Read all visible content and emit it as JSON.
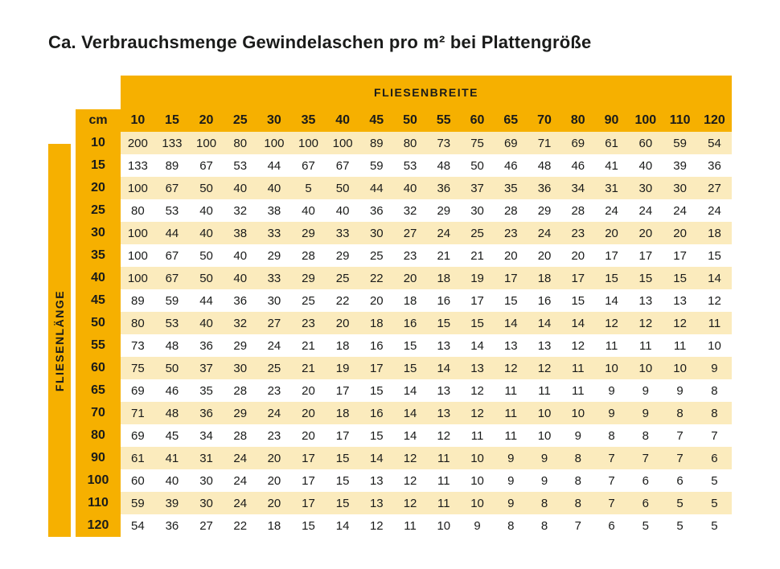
{
  "title": "Ca. Verbrauchsmenge Gewindelaschen pro m² bei Plattengröße",
  "xAxisLabel": "FLIESENBREITE",
  "yAxisLabel": "FLIESENLÄNGE",
  "unitLabel": "cm",
  "columns": [
    "10",
    "15",
    "20",
    "25",
    "30",
    "35",
    "40",
    "45",
    "50",
    "55",
    "60",
    "65",
    "70",
    "80",
    "90",
    "100",
    "110",
    "120"
  ],
  "rows": [
    {
      "h": "10",
      "v": [
        "200",
        "133",
        "100",
        "80",
        "100",
        "100",
        "100",
        "89",
        "80",
        "73",
        "75",
        "69",
        "71",
        "69",
        "61",
        "60",
        "59",
        "54"
      ]
    },
    {
      "h": "15",
      "v": [
        "133",
        "89",
        "67",
        "53",
        "44",
        "67",
        "67",
        "59",
        "53",
        "48",
        "50",
        "46",
        "48",
        "46",
        "41",
        "40",
        "39",
        "36"
      ]
    },
    {
      "h": "20",
      "v": [
        "100",
        "67",
        "50",
        "40",
        "40",
        "5",
        "50",
        "44",
        "40",
        "36",
        "37",
        "35",
        "36",
        "34",
        "31",
        "30",
        "30",
        "27"
      ]
    },
    {
      "h": "25",
      "v": [
        "80",
        "53",
        "40",
        "32",
        "38",
        "40",
        "40",
        "36",
        "32",
        "29",
        "30",
        "28",
        "29",
        "28",
        "24",
        "24",
        "24",
        "24"
      ]
    },
    {
      "h": "30",
      "v": [
        "100",
        "44",
        "40",
        "38",
        "33",
        "29",
        "33",
        "30",
        "27",
        "24",
        "25",
        "23",
        "24",
        "23",
        "20",
        "20",
        "20",
        "18"
      ]
    },
    {
      "h": "35",
      "v": [
        "100",
        "67",
        "50",
        "40",
        "29",
        "28",
        "29",
        "25",
        "23",
        "21",
        "21",
        "20",
        "20",
        "20",
        "17",
        "17",
        "17",
        "15"
      ]
    },
    {
      "h": "40",
      "v": [
        "100",
        "67",
        "50",
        "40",
        "33",
        "29",
        "25",
        "22",
        "20",
        "18",
        "19",
        "17",
        "18",
        "17",
        "15",
        "15",
        "15",
        "14"
      ]
    },
    {
      "h": "45",
      "v": [
        "89",
        "59",
        "44",
        "36",
        "30",
        "25",
        "22",
        "20",
        "18",
        "16",
        "17",
        "15",
        "16",
        "15",
        "14",
        "13",
        "13",
        "12"
      ]
    },
    {
      "h": "50",
      "v": [
        "80",
        "53",
        "40",
        "32",
        "27",
        "23",
        "20",
        "18",
        "16",
        "15",
        "15",
        "14",
        "14",
        "14",
        "12",
        "12",
        "12",
        "11"
      ]
    },
    {
      "h": "55",
      "v": [
        "73",
        "48",
        "36",
        "29",
        "24",
        "21",
        "18",
        "16",
        "15",
        "13",
        "14",
        "13",
        "13",
        "12",
        "11",
        "11",
        "11",
        "10"
      ]
    },
    {
      "h": "60",
      "v": [
        "75",
        "50",
        "37",
        "30",
        "25",
        "21",
        "19",
        "17",
        "15",
        "14",
        "13",
        "12",
        "12",
        "11",
        "10",
        "10",
        "10",
        "9"
      ]
    },
    {
      "h": "65",
      "v": [
        "69",
        "46",
        "35",
        "28",
        "23",
        "20",
        "17",
        "15",
        "14",
        "13",
        "12",
        "11",
        "11",
        "11",
        "9",
        "9",
        "9",
        "8"
      ]
    },
    {
      "h": "70",
      "v": [
        "71",
        "48",
        "36",
        "29",
        "24",
        "20",
        "18",
        "16",
        "14",
        "13",
        "12",
        "11",
        "10",
        "10",
        "9",
        "9",
        "8",
        "8"
      ]
    },
    {
      "h": "80",
      "v": [
        "69",
        "45",
        "34",
        "28",
        "23",
        "20",
        "17",
        "15",
        "14",
        "12",
        "11",
        "11",
        "10",
        "9",
        "8",
        "8",
        "7",
        "7"
      ]
    },
    {
      "h": "90",
      "v": [
        "61",
        "41",
        "31",
        "24",
        "20",
        "17",
        "15",
        "14",
        "12",
        "11",
        "10",
        "9",
        "9",
        "8",
        "7",
        "7",
        "7",
        "6"
      ]
    },
    {
      "h": "100",
      "v": [
        "60",
        "40",
        "30",
        "24",
        "20",
        "17",
        "15",
        "13",
        "12",
        "11",
        "10",
        "9",
        "9",
        "8",
        "7",
        "6",
        "6",
        "5"
      ]
    },
    {
      "h": "110",
      "v": [
        "59",
        "39",
        "30",
        "24",
        "20",
        "17",
        "15",
        "13",
        "12",
        "11",
        "10",
        "9",
        "8",
        "8",
        "7",
        "6",
        "5",
        "5"
      ]
    },
    {
      "h": "120",
      "v": [
        "54",
        "36",
        "27",
        "22",
        "18",
        "15",
        "14",
        "12",
        "11",
        "10",
        "9",
        "8",
        "8",
        "7",
        "6",
        "5",
        "5",
        "5"
      ]
    }
  ],
  "style": {
    "headerBg": "#f6b000",
    "rowOddBg": "#fbebbd",
    "rowEvenBg": "#ffffff",
    "textColor": "#1a1b1a",
    "titleFontSize": 22,
    "cellFontSize": 15,
    "headerFontSize": 16,
    "cellWidth": 45,
    "cellHeight": 28
  }
}
